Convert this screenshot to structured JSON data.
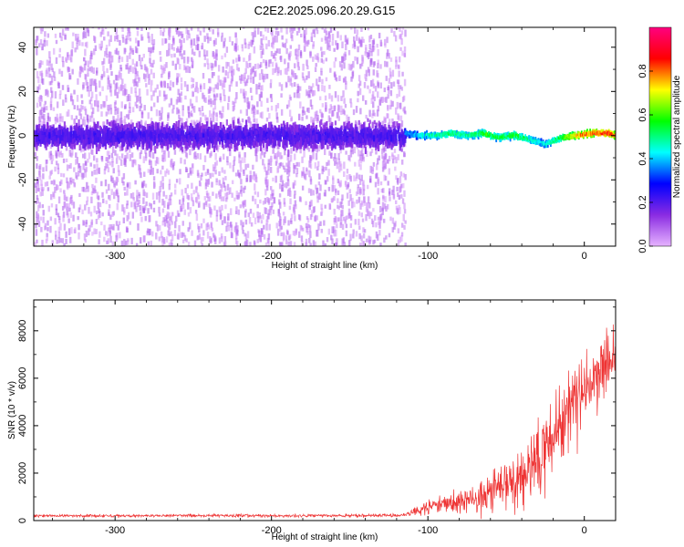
{
  "figure": {
    "title": "C2E2.2025.096.20.29.G15"
  },
  "chart_data": [
    {
      "type": "heatmap",
      "xlabel": "Height of straight line (km)",
      "ylabel": "Frequency (Hz)",
      "xlim": [
        -352,
        20
      ],
      "ylim": [
        -50,
        49
      ],
      "xticks": [
        -300,
        -200,
        -100,
        0
      ],
      "yticks": [
        -40,
        -20,
        0,
        20,
        40
      ],
      "colorbar": {
        "label": "Normalized spectral amplitude",
        "range": [
          0,
          1
        ],
        "ticks": [
          0.0,
          0.2,
          0.4,
          0.6,
          0.8
        ],
        "colors": [
          "#e6b3ff",
          "#8a2be2",
          "#0000ff",
          "#00ffff",
          "#00ff00",
          "#ffff00",
          "#ff0000",
          "#ff0080"
        ]
      },
      "noise_region": {
        "x_end": -115,
        "freq_spread": 50,
        "core_spread": 8
      },
      "signal_track": {
        "x": [
          -115,
          -105,
          -95,
          -85,
          -75,
          -65,
          -55,
          -45,
          -35,
          -25,
          -15,
          -5,
          5,
          15,
          20
        ],
        "freq": [
          1,
          0,
          0,
          1,
          0,
          1,
          -1,
          0,
          -2,
          -4,
          -1,
          0,
          1,
          1,
          0
        ],
        "amplitude": [
          0.35,
          0.45,
          0.5,
          0.55,
          0.5,
          0.6,
          0.55,
          0.6,
          0.5,
          0.45,
          0.6,
          0.8,
          0.85,
          0.9,
          0.8
        ]
      }
    },
    {
      "type": "line",
      "xlabel": "Height of straight line (km)",
      "ylabel": "SNR (10 * v/v)",
      "xlim": [
        -352,
        20
      ],
      "ylim": [
        0,
        9300
      ],
      "xticks": [
        -300,
        -200,
        -100,
        0
      ],
      "yticks": [
        0,
        2000,
        4000,
        6000,
        8000
      ],
      "color": "#ee3333",
      "envelope": {
        "x": [
          -352,
          -300,
          -250,
          -200,
          -150,
          -115,
          -105,
          -95,
          -85,
          -75,
          -65,
          -55,
          -45,
          -35,
          -25,
          -15,
          -5,
          5,
          15,
          20
        ],
        "mean": [
          200,
          200,
          210,
          200,
          210,
          220,
          450,
          650,
          750,
          850,
          1000,
          1300,
          1600,
          2200,
          3000,
          4200,
          5000,
          5800,
          6500,
          7000
        ],
        "spread": [
          100,
          100,
          100,
          100,
          110,
          120,
          500,
          700,
          900,
          1000,
          1300,
          1600,
          2000,
          2400,
          2800,
          3000,
          3000,
          2600,
          2200,
          1800
        ]
      }
    }
  ]
}
